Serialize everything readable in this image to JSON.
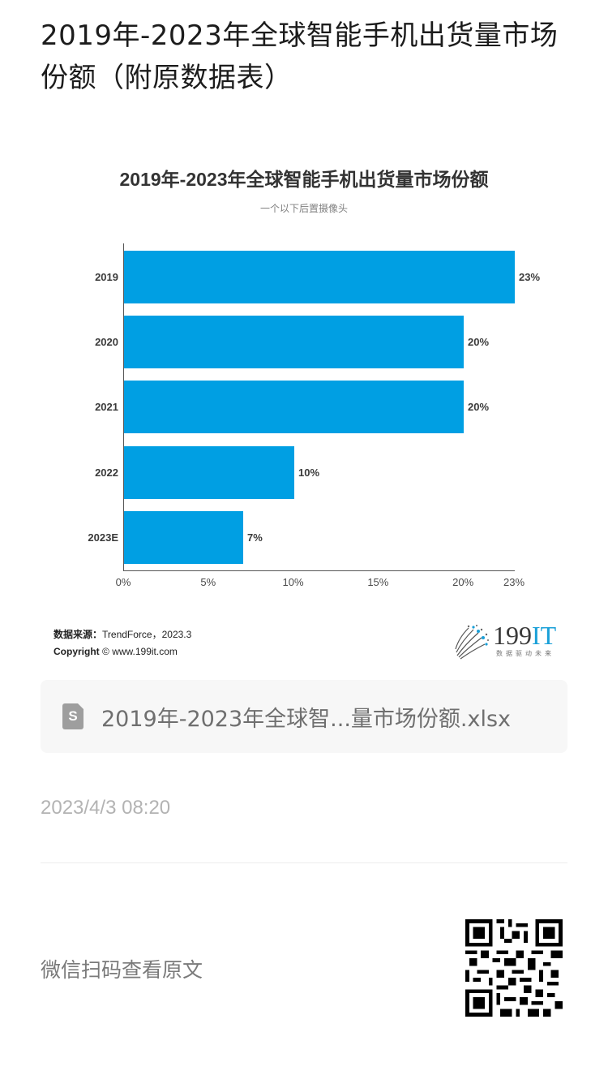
{
  "article": {
    "title": "2019年-2023年全球智能手机出货量市场份额（附原数据表）"
  },
  "chart": {
    "title": "2019年-2023年全球智能手机出货量市场份额",
    "subtitle": "一个以下后置摄像头",
    "bar_color": "#009fe3",
    "rows": [
      {
        "category": "2019",
        "value_label": "23%"
      },
      {
        "category": "2020",
        "value_label": "20%"
      },
      {
        "category": "2021",
        "value_label": "20%"
      },
      {
        "category": "2022",
        "value_label": "10%"
      },
      {
        "category": "2023E",
        "value_label": "7%"
      }
    ],
    "x_ticks": [
      "0%",
      "5%",
      "10%",
      "15%",
      "20%",
      "23%"
    ],
    "source_label": "数据来源：",
    "source_value": "TrendForce，2023.3",
    "copyright_label": "Copyright",
    "copyright_value": "© www.199it.com",
    "logo": {
      "text_main": "199",
      "text_accent": "IT",
      "tagline": "数据驱动未来"
    }
  },
  "chart_data": {
    "type": "bar",
    "orientation": "horizontal",
    "title": "2019年-2023年全球智能手机出货量市场份额",
    "subtitle": "一个以下后置摄像头",
    "categories": [
      "2019",
      "2020",
      "2021",
      "2022",
      "2023E"
    ],
    "values": [
      23,
      20,
      20,
      10,
      7
    ],
    "unit": "%",
    "xlabel": "",
    "ylabel": "",
    "xlim": [
      0,
      23
    ],
    "x_ticks": [
      0,
      5,
      10,
      15,
      20,
      23
    ],
    "grid": false,
    "legend": null,
    "data_labels": true,
    "source": "TrendForce，2023.3"
  },
  "attachment": {
    "icon": "spreadsheet-file-icon",
    "icon_glyph": "S",
    "file_name": "2019年-2023年全球智...量市场份额.xlsx"
  },
  "meta": {
    "timestamp": "2023/4/3 08:20"
  },
  "footer": {
    "scan_text": "微信扫码查看原文"
  }
}
